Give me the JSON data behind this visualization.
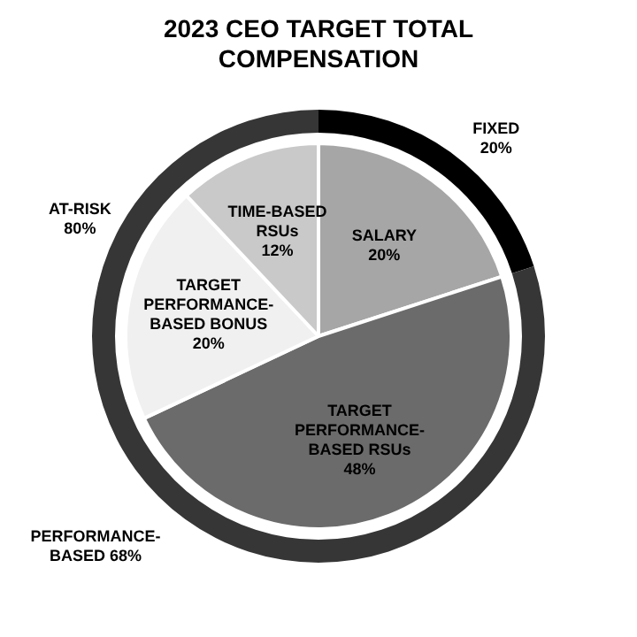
{
  "chart_data": [
    {
      "type": "donut",
      "title": "2023 CEO TARGET TOTAL COMPENSATION",
      "categories": [
        "FIXED",
        "AT-RISK"
      ],
      "values": [
        20,
        80
      ],
      "colors": [
        "#000000",
        "#363636"
      ],
      "value_labels": [
        "20%",
        "80%"
      ],
      "annotations": [
        "PERFORMANCE-BASED 68%"
      ],
      "legend": false
    },
    {
      "type": "pie",
      "categories": [
        "SALARY",
        "TARGET PERFORMANCE-BASED RSUs",
        "TARGET PERFORMANCE-BASED BONUS",
        "TIME-BASED RSUs"
      ],
      "values": [
        20,
        48,
        20,
        12
      ],
      "colors": [
        "#a6a6a6",
        "#6b6b6b",
        "#f0f0f0",
        "#c9c9c9"
      ],
      "value_labels": [
        "20%",
        "48%",
        "20%",
        "12%"
      ],
      "legend": false
    }
  ]
}
